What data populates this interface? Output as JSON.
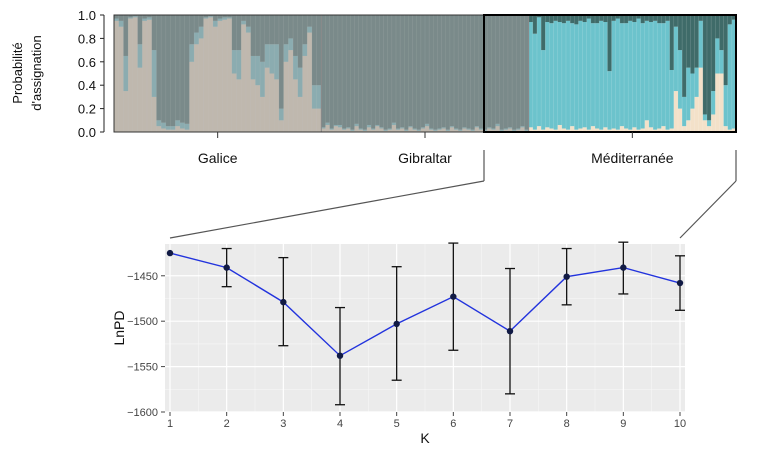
{
  "chart_data": [
    {
      "type": "bar",
      "subtype": "stacked-assignment-barplot",
      "ylabel_line1": "Probabilité",
      "ylabel_line2": "d'assignation",
      "ylim": [
        0,
        1
      ],
      "yticks": [
        "0.0",
        "0.2",
        "0.4",
        "0.6",
        "0.8",
        "1.0"
      ],
      "groups": [
        "Galice",
        "Gibraltar",
        "Méditerranée"
      ],
      "highlighted_group": "Méditerranée",
      "series_colors": {
        "cream": "#f3e1c9",
        "teal": "#6cc3cc",
        "dark": "#3f6b69"
      },
      "groups_data": [
        {
          "name": "Galice",
          "cream": [
            0.95,
            0.9,
            0.35,
            0.97,
            0.98,
            0.55,
            0.95,
            0.96,
            0.3,
            0.05,
            0.03,
            0.02,
            0.02,
            0.05,
            0.03,
            0.02,
            0.6,
            0.75,
            0.8,
            0.97,
            0.98,
            0.9,
            0.95,
            0.96,
            0.97,
            0.5,
            0.45,
            0.92,
            0.85,
            0.45,
            0.4,
            0.3,
            0.55,
            0.5,
            0.45,
            0.1,
            0.6,
            0.7,
            0.45,
            0.3,
            0.65,
            0.85,
            0.2,
            0.2
          ],
          "teal": [
            0.02,
            0.05,
            0.3,
            0.01,
            0.01,
            0.2,
            0.02,
            0.02,
            0.4,
            0.05,
            0.05,
            0.03,
            0.03,
            0.05,
            0.05,
            0.05,
            0.15,
            0.1,
            0.1,
            0.01,
            0.01,
            0.05,
            0.02,
            0.02,
            0.01,
            0.2,
            0.25,
            0.03,
            0.05,
            0.2,
            0.25,
            0.3,
            0.2,
            0.25,
            0.3,
            0.1,
            0.15,
            0.1,
            0.2,
            0.25,
            0.1,
            0.05,
            0.2,
            0.2
          ]
        },
        {
          "name": "Gibraltar",
          "cream": [
            0.03,
            0.06,
            0.02,
            0.05,
            0.04,
            0.02,
            0.03,
            0.01,
            0.05,
            0.02,
            0.01,
            0.04,
            0.02,
            0.05,
            0.03,
            0.01,
            0.02,
            0.06,
            0.02,
            0.03,
            0.01,
            0.04,
            0.02,
            0.01,
            0.03,
            0.05,
            0.02,
            0.01,
            0.02,
            0.03,
            0.01,
            0.04,
            0.02,
            0.01,
            0.03,
            0.02,
            0.01,
            0.04,
            0.02,
            0.01,
            0.03,
            0.02,
            0.05,
            0.01,
            0.02,
            0.03,
            0.01,
            0.02,
            0.04,
            0.01
          ],
          "teal": [
            0.01,
            0.02,
            0.01,
            0.01,
            0.02,
            0.01,
            0.01,
            0.01,
            0.02,
            0.01,
            0.01,
            0.02,
            0.01,
            0.01,
            0.01,
            0.01,
            0.01,
            0.02,
            0.01,
            0.01,
            0.01,
            0.01,
            0.01,
            0.01,
            0.01,
            0.02,
            0.01,
            0.01,
            0.01,
            0.01,
            0.01,
            0.01,
            0.01,
            0.01,
            0.01,
            0.01,
            0.01,
            0.01,
            0.01,
            0.01,
            0.01,
            0.01,
            0.02,
            0.01,
            0.01,
            0.01,
            0.01,
            0.01,
            0.01,
            0.01
          ]
        },
        {
          "name": "Méditerranée",
          "cream": [
            0.04,
            0.02,
            0.05,
            0.02,
            0.04,
            0.03,
            0.02,
            0.06,
            0.03,
            0.02,
            0.05,
            0.02,
            0.03,
            0.04,
            0.02,
            0.05,
            0.03,
            0.02,
            0.04,
            0.02,
            0.03,
            0.02,
            0.05,
            0.03,
            0.02,
            0.04,
            0.02,
            0.03,
            0.1,
            0.04,
            0.02,
            0.03,
            0.05,
            0.02,
            0.03,
            0.35,
            0.2,
            0.05,
            0.1,
            0.2,
            0.3,
            0.55,
            0.1,
            0.05,
            0.15,
            0.5,
            0.5,
            0.05,
            0.02,
            0.03
          ],
          "teal": [
            0.9,
            0.82,
            0.93,
            0.68,
            0.9,
            0.9,
            0.93,
            0.88,
            0.9,
            0.93,
            0.88,
            0.9,
            0.92,
            0.9,
            0.95,
            0.88,
            0.9,
            0.93,
            0.9,
            0.5,
            0.92,
            0.95,
            0.88,
            0.9,
            0.93,
            0.9,
            0.95,
            0.9,
            0.85,
            0.9,
            0.93,
            0.9,
            0.88,
            0.93,
            0.5,
            0.55,
            0.5,
            0.25,
            0.45,
            0.3,
            0.25,
            0.4,
            0.05,
            0.05,
            0.2,
            0.3,
            0.2,
            0.35,
            0.9,
            0.93
          ]
        }
      ]
    },
    {
      "type": "line",
      "xlabel": "K",
      "ylabel": "LnPD",
      "x": [
        1,
        2,
        3,
        4,
        5,
        6,
        7,
        8,
        9,
        10
      ],
      "y": [
        -1425,
        -1441,
        -1479,
        -1538,
        -1503,
        -1473,
        -1511,
        -1451,
        -1441,
        -1458
      ],
      "err_low": [
        -1425,
        -1462,
        -1527,
        -1592,
        -1565,
        -1532,
        -1580,
        -1482,
        -1470,
        -1488
      ],
      "err_high": [
        -1425,
        -1420,
        -1430,
        -1485,
        -1440,
        -1414,
        -1442,
        -1420,
        -1413,
        -1428
      ],
      "xlim": [
        1,
        10
      ],
      "ylim": [
        -1600,
        -1415
      ],
      "yticks": [
        -1450,
        -1500,
        -1550,
        -1600
      ],
      "xticks": [
        1,
        2,
        3,
        4,
        5,
        6,
        7,
        8,
        9,
        10
      ],
      "grid": true,
      "line_color": "#2233dd",
      "point_color": "#111a44"
    }
  ]
}
